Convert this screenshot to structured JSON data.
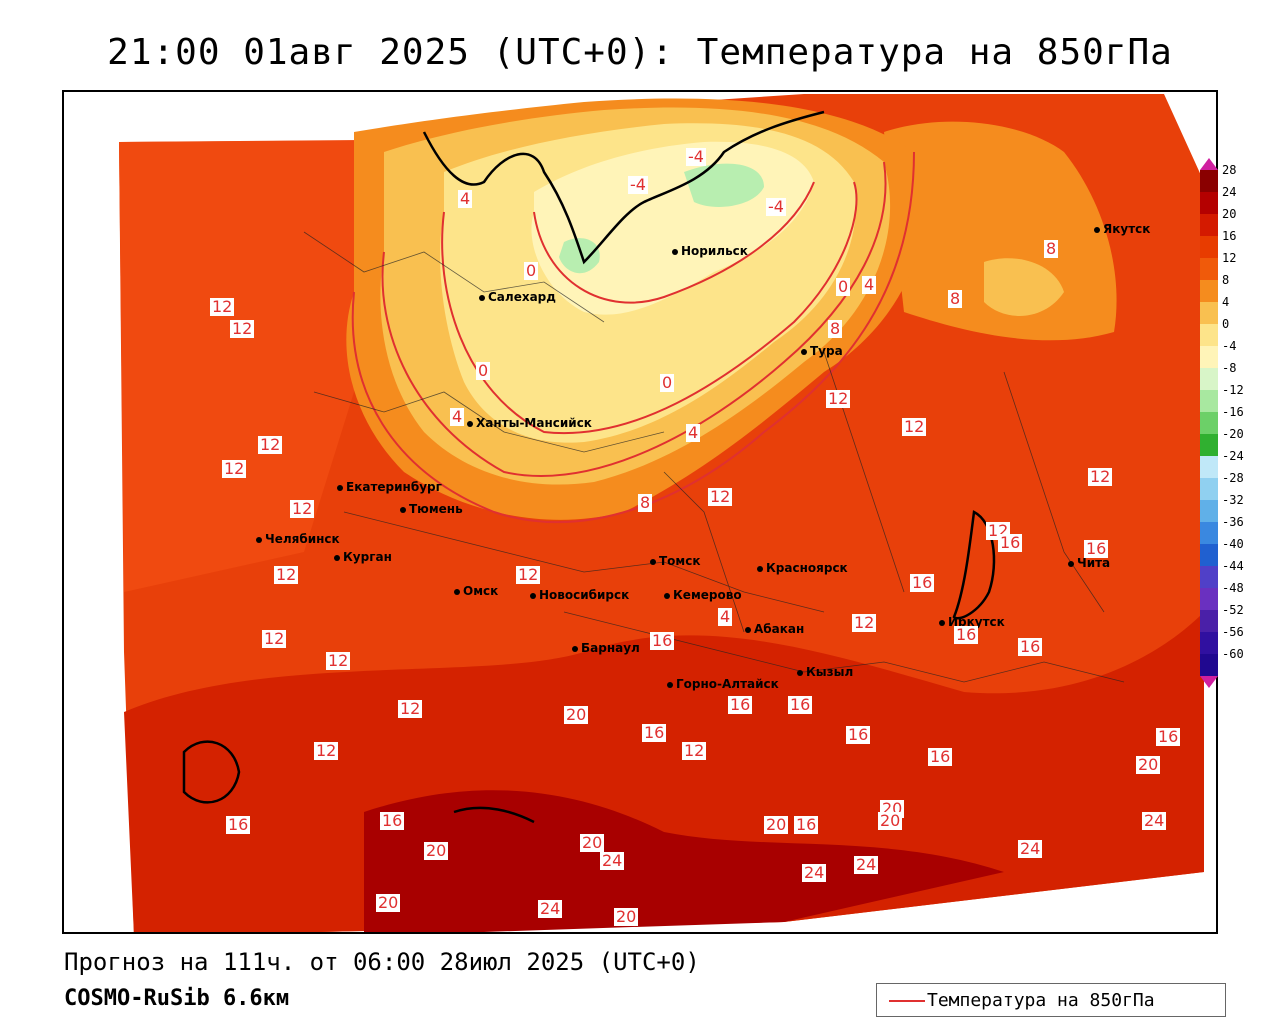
{
  "title": "21:00 01авг 2025 (UTC+0): Температура на 850гПа",
  "forecast_line": "Прогноз на 111ч. от 06:00 28июл 2025 (UTC+0)",
  "model_line": "COSMO-RuSib 6.6км",
  "legend": {
    "label": "Температура на 850гПа",
    "line_color": "#e03030"
  },
  "colorbar": {
    "labels": [
      "28",
      "24",
      "20",
      "16",
      "12",
      "8",
      "4",
      "0",
      "-4",
      "-8",
      "-12",
      "-16",
      "-20",
      "-24",
      "-28",
      "-32",
      "-36",
      "-40",
      "-44",
      "-48",
      "-52",
      "-56",
      "-60"
    ],
    "colors": [
      "#8a0000",
      "#b40000",
      "#d41a00",
      "#e83c00",
      "#f05a0a",
      "#f58c1e",
      "#f9c050",
      "#fde48a",
      "#fff4b8",
      "#d8f5c8",
      "#a8e8a0",
      "#6cd068",
      "#30b030",
      "#c0e8f8",
      "#90d0f0",
      "#60b0e8",
      "#3a88e0",
      "#2060d0",
      "#5040c8",
      "#6a30c0",
      "#4a20a8",
      "#3010a0",
      "#200890"
    ]
  },
  "cities": [
    {
      "name": "Якутск"
    },
    {
      "name": "Норильск"
    },
    {
      "name": "Салехард"
    },
    {
      "name": "Тура"
    },
    {
      "name": "Ханты-Мансийск"
    },
    {
      "name": "Екатеринбург"
    },
    {
      "name": "Тюмень"
    },
    {
      "name": "Челябинск"
    },
    {
      "name": "Курган"
    },
    {
      "name": "Омск"
    },
    {
      "name": "Новосибирск"
    },
    {
      "name": "Томск"
    },
    {
      "name": "Кемерово"
    },
    {
      "name": "Красноярск"
    },
    {
      "name": "Барнаул"
    },
    {
      "name": "Абакан"
    },
    {
      "name": "Кызыл"
    },
    {
      "name": "Горно-Алтайск"
    },
    {
      "name": "Иркутск"
    },
    {
      "name": "Чита"
    }
  ],
  "contour_labels": [
    "-4",
    "-4",
    "-4",
    "4",
    "0",
    "0",
    "0",
    "4",
    "4",
    "8",
    "8",
    "8",
    "8",
    "12",
    "12",
    "12",
    "12",
    "12",
    "12",
    "12",
    "12",
    "12",
    "12",
    "12",
    "12",
    "12",
    "12",
    "12",
    "12",
    "16",
    "16",
    "16",
    "16",
    "16",
    "16",
    "16",
    "16",
    "16",
    "16",
    "16",
    "16",
    "16",
    "20",
    "20",
    "20",
    "20",
    "20",
    "20",
    "20",
    "20",
    "24",
    "24",
    "24",
    "24",
    "24",
    "24",
    "4",
    "0",
    "4",
    "12",
    "16",
    "16",
    "12",
    "20"
  ]
}
